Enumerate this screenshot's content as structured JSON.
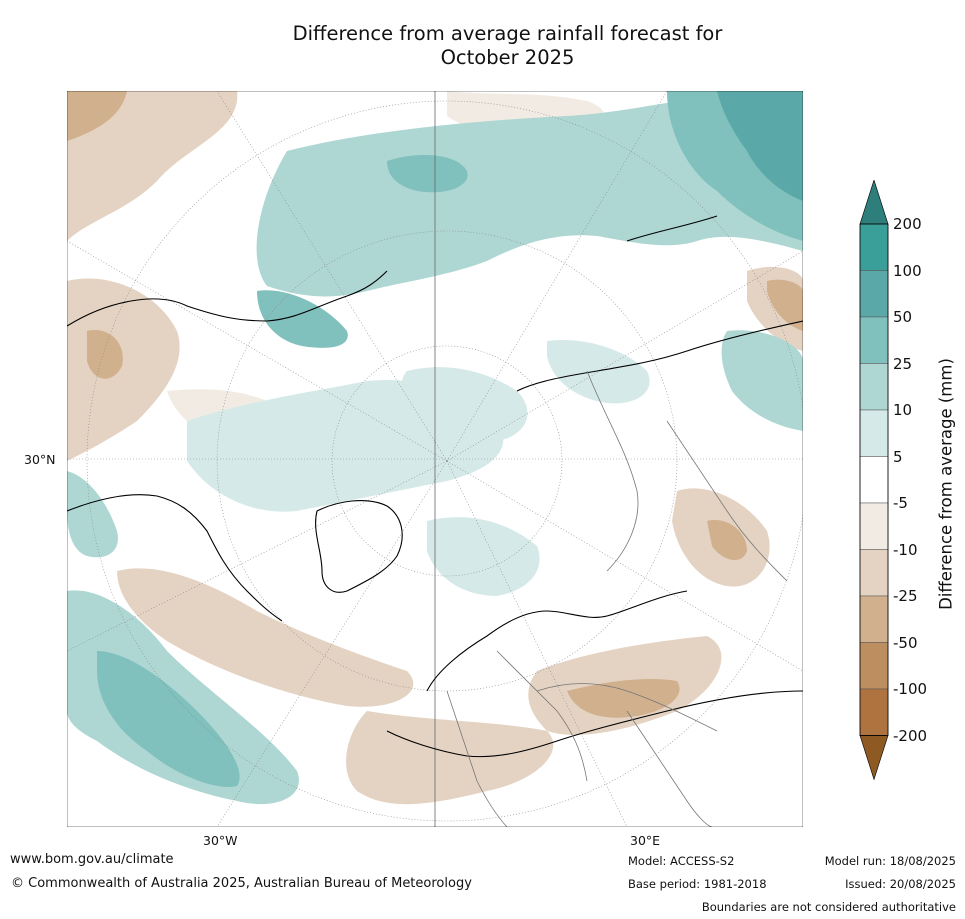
{
  "title_line1": "Difference from average rainfall forecast for",
  "title_line2": "October 2025",
  "map": {
    "label_lat": "30°N",
    "label_lon_w": "30°W",
    "label_lon_e": "30°E"
  },
  "colorbar": {
    "title": "Difference from average (mm)",
    "ticks": [
      "200",
      "100",
      "50",
      "25",
      "10",
      "5",
      "-5",
      "-10",
      "-25",
      "-50",
      "-100",
      "-200"
    ],
    "colors": [
      "#2e7e7b",
      "#3a9e99",
      "#5aa9a8",
      "#80c0bd",
      "#aed7d4",
      "#d5eae8",
      "#ffffff",
      "#f1ebe4",
      "#e4d3c2",
      "#d1b08e",
      "#bd8f60",
      "#ae733f",
      "#8f5924"
    ]
  },
  "footer": {
    "url": "www.bom.gov.au/climate",
    "copyright": "© Commonwealth of Australia 2025, Australian Bureau of Meteorology",
    "model": "Model: ACCESS-S2",
    "base_period": "Base period: 1981-2018",
    "model_run": "Model run: 18/08/2025",
    "issued": "Issued: 20/08/2025",
    "disclaimer": "Boundaries are not considered authoritative"
  }
}
